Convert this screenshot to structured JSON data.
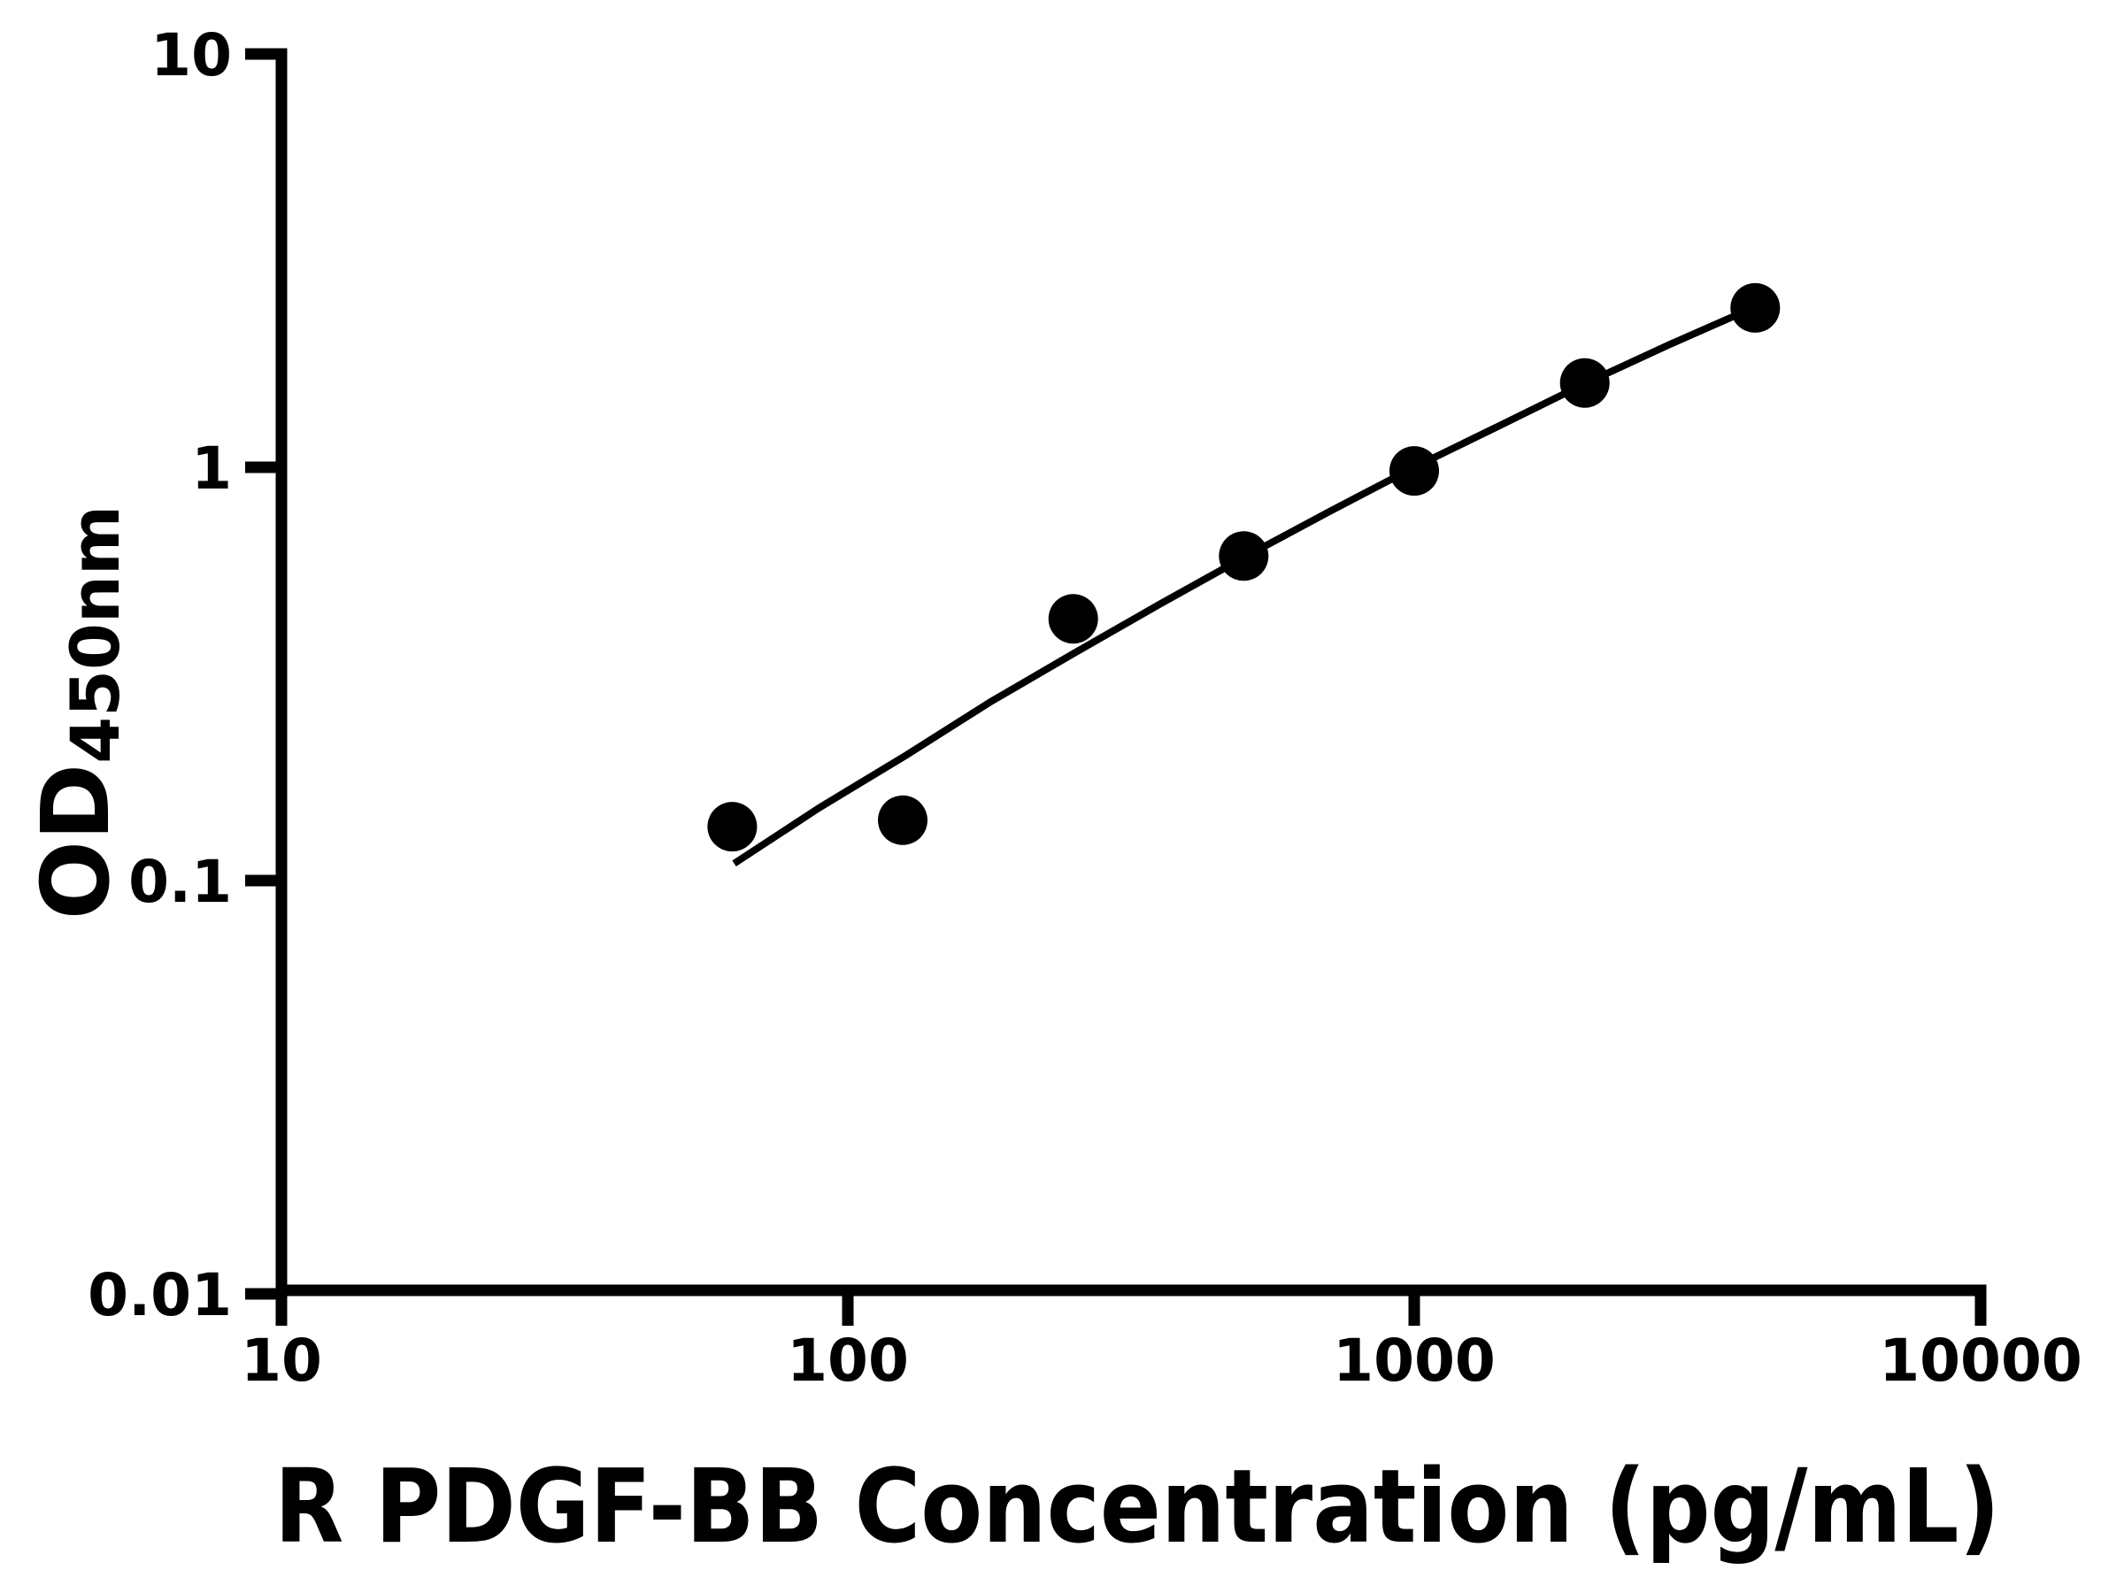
{
  "figure": {
    "background_color": "#ffffff",
    "ink_color": "#000000"
  },
  "chart_data": {
    "type": "scatter",
    "title": "",
    "xlabel": "R PDGF-BB Concentration (pg/mL)",
    "ylabel_main": "OD",
    "ylabel_sub": "450nm",
    "x_scale": "log",
    "y_scale": "log",
    "xlim": [
      10,
      10000
    ],
    "ylim": [
      0.01,
      10
    ],
    "x_ticks": [
      10,
      100,
      1000,
      10000
    ],
    "x_tick_labels": [
      "10",
      "100",
      "1000",
      "10000"
    ],
    "y_ticks": [
      10,
      1,
      0.1,
      0.01
    ],
    "y_tick_labels": [
      "10",
      "1",
      "0.1",
      "0.01"
    ],
    "grid": false,
    "legend": "none",
    "series": [
      {
        "name": "standard-points",
        "marker": "filled-circle",
        "color": "#000000",
        "points": [
          {
            "x": 62.5,
            "od": 0.135
          },
          {
            "x": 125,
            "od": 0.14
          },
          {
            "x": 250,
            "od": 0.43
          },
          {
            "x": 500,
            "od": 0.61
          },
          {
            "x": 1000,
            "od": 0.98
          },
          {
            "x": 2000,
            "od": 1.6
          },
          {
            "x": 4000,
            "od": 2.43
          }
        ]
      }
    ],
    "fit_curve": {
      "name": "standard-curve-fit",
      "color": "#000000",
      "points": [
        [
          63,
          0.11
        ],
        [
          89,
          0.15
        ],
        [
          126,
          0.2
        ],
        [
          178,
          0.27
        ],
        [
          251,
          0.355
        ],
        [
          355,
          0.466
        ],
        [
          501,
          0.606
        ],
        [
          708,
          0.781
        ],
        [
          1000,
          1.0
        ],
        [
          1413,
          1.26
        ],
        [
          1995,
          1.59
        ],
        [
          2818,
          1.98
        ],
        [
          3963,
          2.43
        ]
      ]
    }
  }
}
